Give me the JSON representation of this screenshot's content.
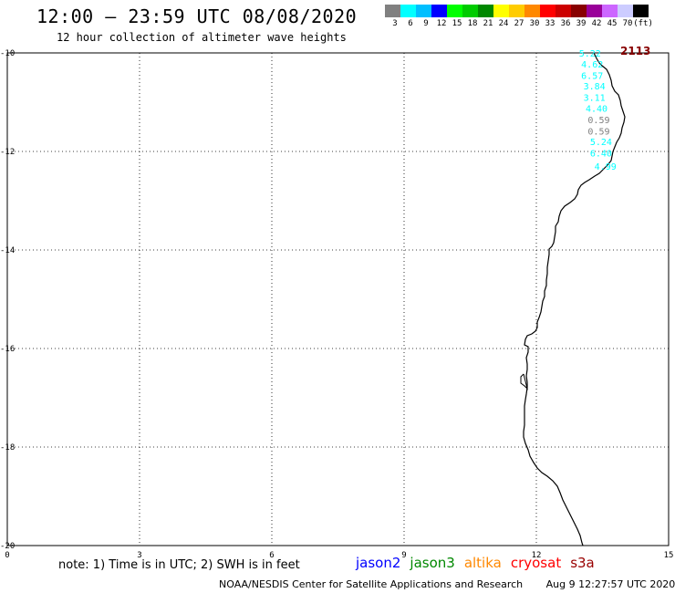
{
  "title": "12:00 – 23:59 UTC 08/08/2020",
  "subtitle": "12 hour collection of altimeter wave heights",
  "colorbar": {
    "colors": [
      "#808080",
      "#00ffff",
      "#00bfff",
      "#0000ff",
      "#00ff00",
      "#00cc00",
      "#008800",
      "#ffff00",
      "#ffcc00",
      "#ff8800",
      "#ff0000",
      "#cc0000",
      "#880000",
      "#990099",
      "#cc66ff",
      "#ccccff",
      "#000000"
    ],
    "labels": [
      "3",
      "6",
      "9",
      "12",
      "15",
      "18",
      "21",
      "24",
      "27",
      "30",
      "33",
      "36",
      "39",
      "42",
      "45",
      "70",
      "(ft)"
    ]
  },
  "axes": {
    "x_ticks": [
      "0",
      "3",
      "6",
      "9",
      "12",
      "15"
    ],
    "y_ticks": [
      "-10",
      "-12",
      "-14",
      "-16",
      "-18",
      "-20"
    ]
  },
  "pass_id": "2113",
  "wave_heights": [
    {
      "value": "5.22",
      "lon": 13.05,
      "lat": -10.0,
      "color": "#00ffff"
    },
    {
      "value": "4.62",
      "lon": 13.1,
      "lat": -10.22,
      "color": "#00ffff"
    },
    {
      "value": "6.57",
      "lon": 13.1,
      "lat": -10.45,
      "color": "#00ffff"
    },
    {
      "value": "3.84",
      "lon": 13.15,
      "lat": -10.67,
      "color": "#00ffff"
    },
    {
      "value": "3.11",
      "lon": 13.15,
      "lat": -10.9,
      "color": "#00ffff"
    },
    {
      "value": "4.40",
      "lon": 13.2,
      "lat": -11.12,
      "color": "#00ffff"
    },
    {
      "value": "0.59",
      "lon": 13.25,
      "lat": -11.35,
      "color": "#808080"
    },
    {
      "value": "0.59",
      "lon": 13.25,
      "lat": -11.58,
      "color": "#808080"
    },
    {
      "value": "5.24",
      "lon": 13.3,
      "lat": -11.8,
      "color": "#00ffff"
    },
    {
      "value": "6.40",
      "lon": 13.3,
      "lat": -12.03,
      "color": "#00ffff"
    },
    {
      "value": "4.99",
      "lon": 13.4,
      "lat": -12.3,
      "color": "#00ffff"
    }
  ],
  "note": "note: 1) Time is in UTC; 2) SWH is in feet",
  "satellites": [
    {
      "name": "jason2",
      "color": "#0000ff"
    },
    {
      "name": "jason3",
      "color": "#008800"
    },
    {
      "name": "altika",
      "color": "#ff8800"
    },
    {
      "name": "cryosat",
      "color": "#ff0000"
    },
    {
      "name": "s3a",
      "color": "#990000"
    }
  ],
  "footer": {
    "credit": "NOAA/NESDIS Center for Satellite Applications and Research",
    "timestamp": "Aug  9 12:27:57 UTC 2020"
  }
}
